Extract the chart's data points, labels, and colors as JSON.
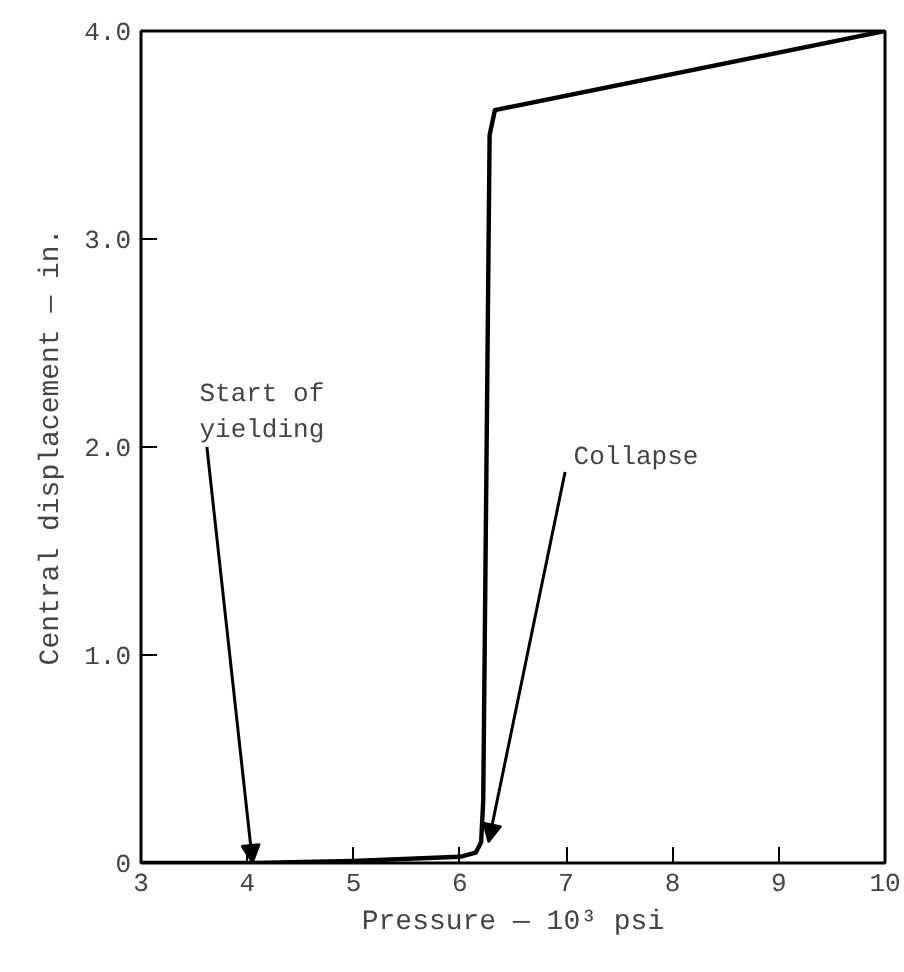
{
  "chart_data": {
    "type": "line",
    "xlabel": "Pressure — 10³ psi",
    "ylabel": "Central displacement — in.",
    "series": [
      {
        "color": "#000000",
        "x": [
          3,
          4,
          5,
          6,
          6.15,
          6.2,
          6.22,
          6.28,
          6.33,
          10
        ],
        "values": [
          0,
          0,
          0.01,
          0.03,
          0.05,
          0.1,
          0.3,
          3.5,
          3.62,
          4.0
        ]
      }
    ],
    "xlim": [
      3,
      10
    ],
    "ylim": [
      0,
      4.0
    ],
    "xticks": [
      3,
      4,
      5,
      6,
      7,
      8,
      9,
      10
    ],
    "yticks": [
      0,
      {
        "value": 1,
        "label": "1.0"
      },
      {
        "value": 2,
        "label": "2.0"
      },
      {
        "value": 3,
        "label": "3.0"
      },
      {
        "value": 4,
        "label": "4.0"
      }
    ],
    "annotations": [
      {
        "text": "Start of\nyielding",
        "x": 4.05,
        "y": 0
      },
      {
        "text": "Collapse",
        "x": 6.27,
        "y": 0.1
      }
    ],
    "grid": false,
    "marker": "none",
    "line_style": "solid"
  }
}
